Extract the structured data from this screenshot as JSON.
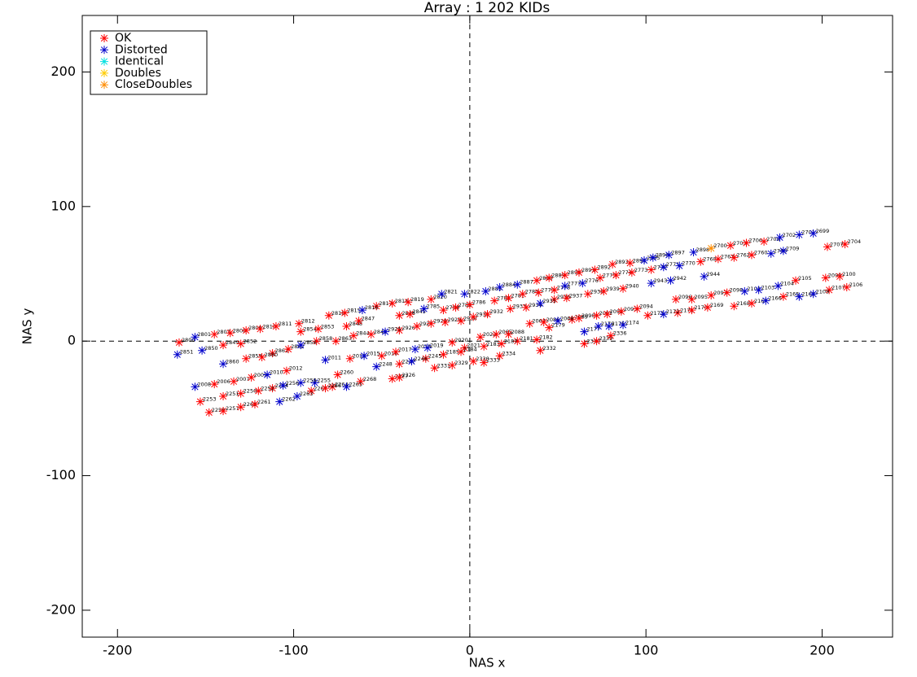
{
  "chart_data": {
    "type": "scatter",
    "title": "Array  : 1  202 KIDs",
    "x_label": "NAS x",
    "y_label": "NAS y",
    "xlim": [
      -220,
      240
    ],
    "ylim": [
      -220,
      242
    ],
    "xticks": [
      -200,
      -100,
      0,
      100,
      200
    ],
    "yticks": [
      -200,
      -100,
      0,
      100,
      200
    ],
    "zero_lines": true,
    "legend": "top-left",
    "series": [
      {
        "name": "OK",
        "color": "#ff0000",
        "labels": [
          "2800",
          "2807",
          "2808",
          "2809",
          "2810",
          "2811",
          "2812",
          "2818",
          "2815",
          "2817",
          "2814",
          "2819",
          "2820",
          "2888",
          "2889",
          "2890",
          "2891",
          "2892",
          "2893",
          "2894",
          "2703",
          "2706",
          "2705",
          "2704",
          "2707",
          "2849",
          "2852",
          "2861",
          "2862",
          "2858",
          "2863",
          "2854",
          "2853",
          "2848",
          "2847",
          "2844",
          "2843",
          "2926",
          "2927",
          "2928",
          "2929",
          "2930",
          "2931",
          "2932",
          "2933",
          "2934",
          "2846",
          "2845",
          "2784",
          "2783",
          "2786",
          "2782",
          "2781",
          "2780",
          "2779",
          "2778",
          "2775",
          "2774",
          "2773",
          "2772",
          "2768",
          "2767",
          "2762",
          "2760",
          "2936",
          "2937",
          "2938",
          "2939",
          "2940",
          "2020",
          "2021",
          "2022",
          "2065",
          "2088",
          "2181",
          "2182",
          "2067",
          "2086",
          "2069",
          "2090",
          "2091",
          "2092",
          "2093",
          "2094",
          "2173",
          "2171",
          "2170",
          "2169",
          "2168",
          "2096",
          "2095",
          "2097",
          "2098",
          "2105",
          "2167",
          "2165",
          "2107",
          "2106",
          "2099",
          "2100",
          "2179",
          "2332",
          "2338",
          "2339",
          "2336",
          "2185",
          "2184",
          "2183",
          "2187",
          "2006",
          "2007",
          "2009",
          "2012",
          "2013",
          "2016",
          "2017",
          "2247",
          "2245",
          "2331",
          "2329",
          "2330",
          "2333",
          "2334",
          "2260",
          "2268",
          "2264",
          "2327",
          "2326",
          "2254",
          "2252",
          "2250",
          "2251",
          "2253",
          "2258",
          "2257",
          "2269",
          "2261",
          "2267",
          "2266",
          "2859",
          "2880"
        ],
        "x": [
          -165,
          -145,
          -136,
          -127,
          -119,
          -110,
          -97,
          -80,
          -71,
          -53,
          -44,
          -35,
          -22,
          38,
          45,
          54,
          62,
          71,
          81,
          91,
          148,
          157,
          167,
          213,
          203,
          -140,
          -130,
          -112,
          -103,
          -87,
          -76,
          -96,
          -86,
          -70,
          -63,
          -66,
          -56,
          -40,
          -30,
          -22,
          -14,
          -5,
          2,
          10,
          23,
          32,
          -40,
          -34,
          -15,
          -8,
          0,
          14,
          22,
          30,
          39,
          48,
          74,
          83,
          92,
          103,
          131,
          141,
          150,
          160,
          48,
          55,
          67,
          76,
          87,
          -10,
          -3,
          6,
          15,
          22,
          27,
          38,
          34,
          42,
          58,
          62,
          72,
          78,
          86,
          95,
          101,
          118,
          126,
          135,
          150,
          117,
          126,
          137,
          146,
          185,
          160,
          178,
          204,
          214,
          202,
          210,
          45,
          40,
          65,
          72,
          80,
          -15,
          -5,
          8,
          18,
          -145,
          -134,
          -124,
          -104,
          -68,
          -50,
          -42,
          -40,
          -25,
          -20,
          -10,
          2,
          8,
          17,
          -75,
          -62,
          -78,
          -44,
          -40,
          -112,
          -120,
          -130,
          -140,
          -153,
          -148,
          -140,
          -130,
          -122,
          -90,
          -82,
          -127,
          -118
        ],
        "values": [
          -1,
          5,
          6,
          8,
          9,
          11,
          13,
          19,
          21,
          26,
          28,
          29,
          31,
          45,
          47,
          49,
          51,
          53,
          57,
          58,
          71,
          73,
          74,
          72,
          70,
          -3,
          -2,
          -9,
          -6,
          0,
          0,
          7,
          9,
          11,
          15,
          4,
          5,
          8,
          11,
          13,
          14,
          15,
          18,
          20,
          24,
          25,
          19,
          20,
          23,
          25,
          27,
          30,
          32,
          35,
          36,
          38,
          47,
          49,
          51,
          53,
          59,
          61,
          62,
          64,
          31,
          32,
          35,
          37,
          39,
          -1,
          -5,
          3,
          5,
          5,
          0,
          1,
          13,
          14,
          16,
          17,
          19,
          20,
          22,
          24,
          19,
          21,
          23,
          25,
          26,
          31,
          31,
          34,
          36,
          45,
          28,
          33,
          38,
          40,
          47,
          48,
          10,
          -7,
          -2,
          0,
          4,
          -10,
          -8,
          -4,
          -2,
          -32,
          -30,
          -27,
          -22,
          -13,
          -11,
          -8,
          -17,
          -13,
          -20,
          -18,
          -15,
          -16,
          -11,
          -25,
          -30,
          -34,
          -28,
          -27,
          -35,
          -37,
          -39,
          -41,
          -45,
          -53,
          -52,
          -49,
          -47,
          -37,
          -35,
          -13,
          -12
        ]
      },
      {
        "name": "Distorted",
        "color": "#0000cc",
        "labels": [
          "2801",
          "2816",
          "2821",
          "2822",
          "2885",
          "2884",
          "2887",
          "2895",
          "2896",
          "2897",
          "2898",
          "2702",
          "2701",
          "2699",
          "2851",
          "2850",
          "2856",
          "2925",
          "2785",
          "2777",
          "2776",
          "2771",
          "2770",
          "2765",
          "2709",
          "2935",
          "2943",
          "2942",
          "2944",
          "2068",
          "2172",
          "2102",
          "2103",
          "2104",
          "2166",
          "2163",
          "2109",
          "2177",
          "2176",
          "2175",
          "2174",
          "2008",
          "2010",
          "2011",
          "2015",
          "2018",
          "2019",
          "2248",
          "2246",
          "2265",
          "2255",
          "2259",
          "2256",
          "2262",
          "2263",
          "2860"
        ],
        "x": [
          -156,
          -61,
          -16,
          -3,
          9,
          17,
          27,
          99,
          104,
          113,
          127,
          176,
          187,
          195,
          -166,
          -152,
          -96,
          -48,
          -26,
          54,
          64,
          110,
          119,
          171,
          178,
          40,
          103,
          114,
          133,
          50,
          110,
          156,
          164,
          175,
          168,
          187,
          195,
          65,
          73,
          79,
          87,
          -156,
          -115,
          -82,
          -60,
          -31,
          -24,
          -53,
          -33,
          -70,
          -88,
          -96,
          -106,
          -108,
          -98,
          -140
        ],
        "values": [
          3,
          23,
          35,
          35,
          37,
          40,
          42,
          60,
          62,
          64,
          66,
          77,
          79,
          80,
          -10,
          -7,
          -3,
          7,
          24,
          41,
          43,
          55,
          56,
          65,
          67,
          28,
          43,
          45,
          48,
          15,
          20,
          37,
          38,
          41,
          30,
          33,
          35,
          7,
          11,
          11,
          12,
          -34,
          -25,
          -14,
          -11,
          -6,
          -5,
          -19,
          -15,
          -34,
          -31,
          -31,
          -33,
          -45,
          -41,
          -17
        ]
      },
      {
        "name": "Identical",
        "color": "#00e0e0",
        "labels": [],
        "x": [],
        "values": []
      },
      {
        "name": "Doubles",
        "color": "#ffcc00",
        "labels": [],
        "x": [],
        "values": []
      },
      {
        "name": "CloseDoubles",
        "color": "#ff8c00",
        "labels": [
          "2700"
        ],
        "x": [
          137
        ],
        "values": [
          69
        ]
      }
    ]
  }
}
